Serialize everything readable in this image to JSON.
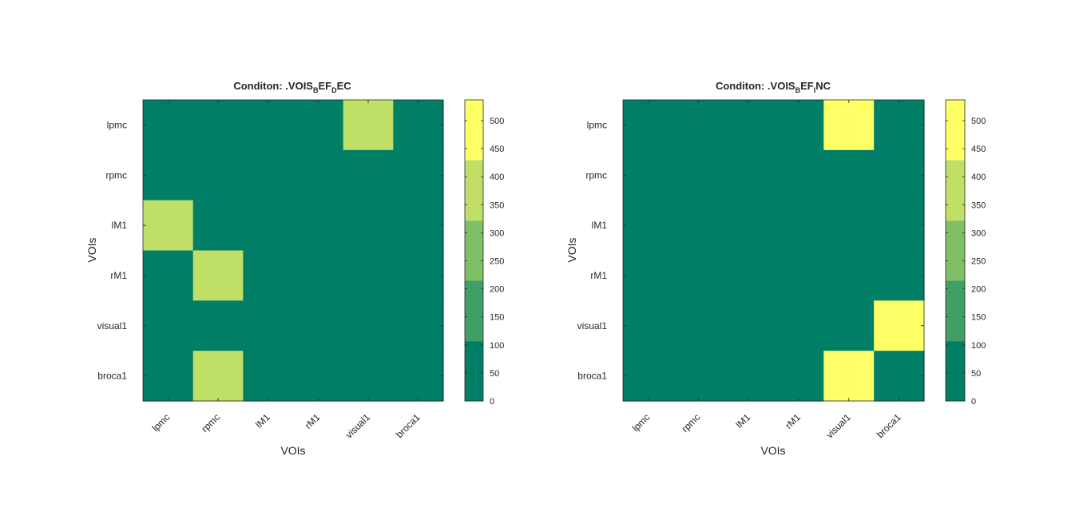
{
  "chart_data": [
    {
      "type": "heatmap",
      "title": {
        "prefix": "Conditon: .VOIS",
        "sub1": "B",
        "mid": "EF",
        "sub2": "D",
        "suffix": "EC"
      },
      "xlabel": "VOIs",
      "ylabel": "VOIs",
      "x_categories": [
        "lpmc",
        "rpmc",
        "lM1",
        "rM1",
        "visual1",
        "broca1"
      ],
      "y_categories": [
        "lpmc",
        "rpmc",
        "lM1",
        "rM1",
        "visual1",
        "broca1"
      ],
      "values": [
        [
          0,
          0,
          0,
          0,
          400,
          0
        ],
        [
          0,
          0,
          0,
          0,
          0,
          0
        ],
        [
          400,
          0,
          0,
          0,
          0,
          0
        ],
        [
          0,
          400,
          0,
          0,
          0,
          0
        ],
        [
          0,
          0,
          0,
          0,
          0,
          0
        ],
        [
          0,
          400,
          0,
          0,
          0,
          0
        ]
      ],
      "colorbar": {
        "ticks": [
          0,
          50,
          100,
          150,
          200,
          250,
          300,
          350,
          400,
          450,
          500
        ],
        "range": [
          0,
          537
        ],
        "levels": [
          {
            "from": 0,
            "to": 107,
            "color": "#007f66"
          },
          {
            "from": 107,
            "to": 215,
            "color": "#3f9f66"
          },
          {
            "from": 215,
            "to": 322,
            "color": "#7fbf66"
          },
          {
            "from": 322,
            "to": 430,
            "color": "#bfdf66"
          },
          {
            "from": 430,
            "to": 537,
            "color": "#ffff66"
          }
        ]
      }
    },
    {
      "type": "heatmap",
      "title": {
        "prefix": "Conditon: .VOIS",
        "sub1": "B",
        "mid": "EF",
        "sub2": "I",
        "suffix": "NC"
      },
      "xlabel": "VOIs",
      "ylabel": "VOIs",
      "x_categories": [
        "lpmc",
        "rpmc",
        "lM1",
        "rM1",
        "visual1",
        "broca1"
      ],
      "y_categories": [
        "lpmc",
        "rpmc",
        "lM1",
        "rM1",
        "visual1",
        "broca1"
      ],
      "values": [
        [
          0,
          0,
          0,
          0,
          537,
          0
        ],
        [
          0,
          0,
          0,
          0,
          0,
          0
        ],
        [
          0,
          0,
          0,
          0,
          0,
          0
        ],
        [
          0,
          0,
          0,
          0,
          0,
          0
        ],
        [
          0,
          0,
          0,
          0,
          0,
          537
        ],
        [
          0,
          0,
          0,
          0,
          537,
          0
        ]
      ],
      "colorbar": {
        "ticks": [
          0,
          50,
          100,
          150,
          200,
          250,
          300,
          350,
          400,
          450,
          500
        ],
        "range": [
          0,
          537
        ],
        "levels": [
          {
            "from": 0,
            "to": 107,
            "color": "#007f66"
          },
          {
            "from": 107,
            "to": 215,
            "color": "#3f9f66"
          },
          {
            "from": 215,
            "to": 322,
            "color": "#7fbf66"
          },
          {
            "from": 322,
            "to": 430,
            "color": "#bfdf66"
          },
          {
            "from": 430,
            "to": 537,
            "color": "#ffff66"
          }
        ]
      }
    }
  ]
}
